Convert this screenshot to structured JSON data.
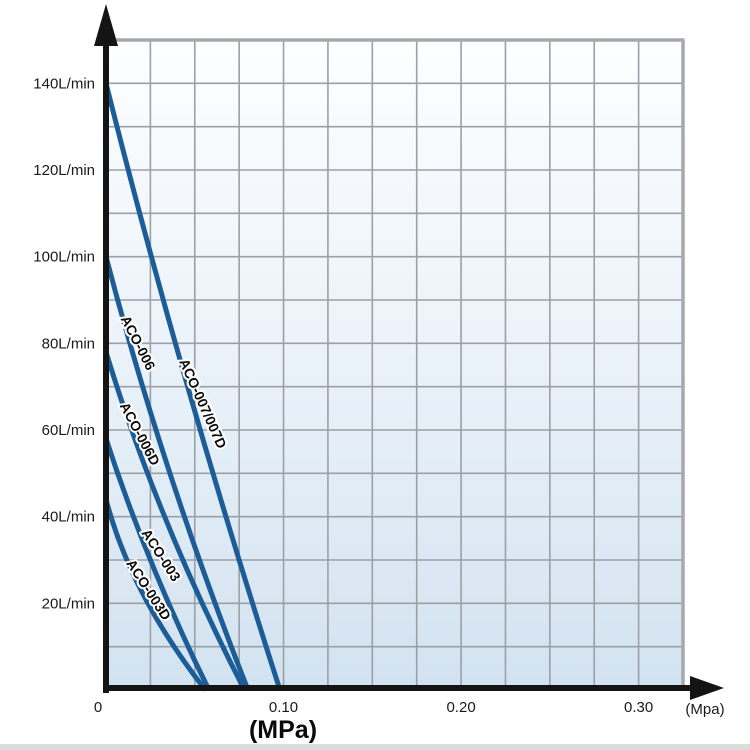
{
  "page": {
    "background": "#ffffff",
    "bottom_strip_color": "#dcdcdc"
  },
  "chart_data": {
    "type": "line",
    "title": "",
    "xlabel": "(MPa)",
    "x_unit_label": "(Mpa)",
    "ylabel": "",
    "xlim": [
      0,
      0.325
    ],
    "ylim": [
      0,
      150
    ],
    "x_grid_step": 0.025,
    "y_grid_step": 10,
    "grid": true,
    "legend_position": "on-curve",
    "x_ticks": [
      {
        "value": 0,
        "label": "0"
      },
      {
        "value": 0.1,
        "label": "0.10"
      },
      {
        "value": 0.2,
        "label": "0.20"
      },
      {
        "value": 0.3,
        "label": "0.30"
      }
    ],
    "y_ticks": [
      {
        "value": 140,
        "label": "140L/min"
      },
      {
        "value": 120,
        "label": "120L/min"
      },
      {
        "value": 100,
        "label": "100L/min"
      },
      {
        "value": 80,
        "label": "80L/min"
      },
      {
        "value": 60,
        "label": "60L/min"
      },
      {
        "value": 40,
        "label": "40L/min"
      },
      {
        "value": 20,
        "label": "20L/min"
      }
    ],
    "series": [
      {
        "name": "ACO-007/007D",
        "points": [
          [
            0,
            140
          ],
          [
            0.046,
            70
          ],
          [
            0.098,
            0
          ]
        ],
        "label": {
          "x": 0.054,
          "y": 66,
          "angle": 66
        }
      },
      {
        "name": "ACO-006",
        "points": [
          [
            0,
            100
          ],
          [
            0.036,
            50
          ],
          [
            0.08,
            0
          ]
        ],
        "label": {
          "x": 0.0175,
          "y": 80,
          "angle": 63
        }
      },
      {
        "name": "ACO-006D",
        "points": [
          [
            0,
            78
          ],
          [
            0.034,
            39
          ],
          [
            0.078,
            0
          ]
        ],
        "label": {
          "x": 0.0185,
          "y": 59,
          "angle": 62
        }
      },
      {
        "name": "ACO-003",
        "points": [
          [
            0,
            58
          ],
          [
            0.026,
            29
          ],
          [
            0.058,
            0
          ]
        ],
        "label": {
          "x": 0.0305,
          "y": 31,
          "angle": 57
        }
      },
      {
        "name": "ACO-003D",
        "points": [
          [
            0,
            44
          ],
          [
            0.021,
            22
          ],
          [
            0.056,
            0
          ]
        ],
        "label": {
          "x": 0.0235,
          "y": 23,
          "angle": 57
        }
      }
    ],
    "colors": {
      "curve": "#1d5d97",
      "grid": "#9aa0a6",
      "grid_border": "#a5a9ad",
      "axis": "#141414",
      "bg_top": "#fdfeff",
      "bg_mid": "#eaf2f9",
      "bg_bottom": "#d2e2f0",
      "curve_label_text": "#0d0d0d",
      "curve_label_halo": "#ffffff",
      "tick_text": "#1a1a1a"
    }
  }
}
